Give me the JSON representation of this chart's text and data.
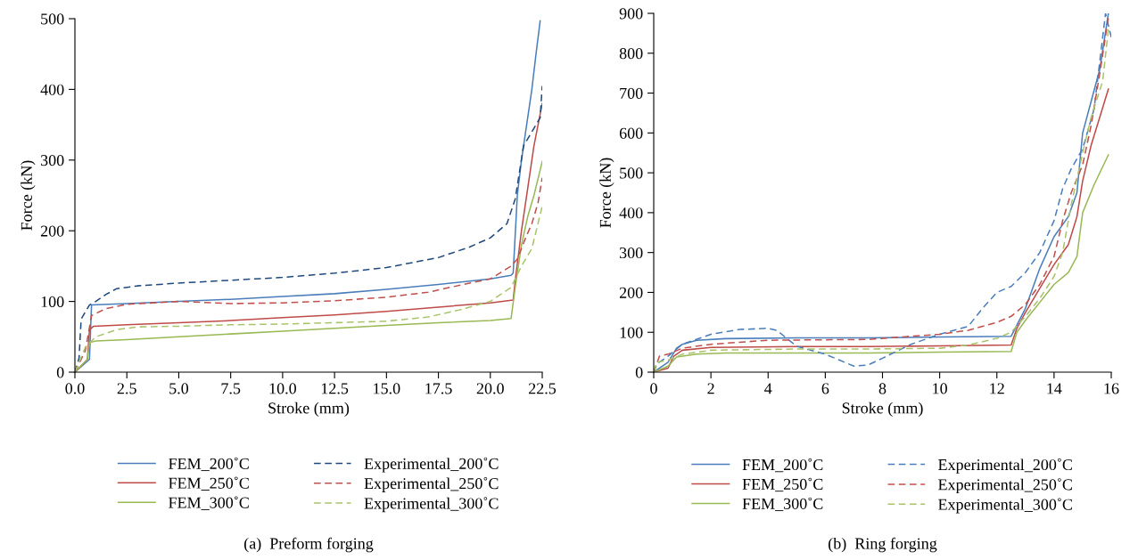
{
  "chart_data": [
    {
      "type": "line",
      "xlabel": "Stroke (mm)",
      "ylabel": "Force (kN)",
      "xlim": [
        0,
        22.5
      ],
      "ylim": [
        0,
        500
      ],
      "xticks": [
        {
          "value": 0,
          "label": "0.0"
        },
        {
          "value": 2.5,
          "label": "2.5"
        },
        {
          "value": 5,
          "label": "5.0"
        },
        {
          "value": 7.5,
          "label": "7.5"
        },
        {
          "value": 10,
          "label": "10.0"
        },
        {
          "value": 12.5,
          "label": "12.5"
        },
        {
          "value": 15,
          "label": "15.0"
        },
        {
          "value": 17.5,
          "label": "17.5"
        },
        {
          "value": 20,
          "label": "20.0"
        },
        {
          "value": 22.5,
          "label": "22.5"
        }
      ],
      "yticks": [
        0,
        100,
        200,
        300,
        400,
        500
      ],
      "grid": false,
      "legend": "bottom",
      "marker": "none",
      "annotations": [
        "(a)  Preform forging"
      ],
      "series": [
        {
          "name": "FEM_200˚C",
          "color": "#4a7ebb",
          "line_style": "solid",
          "x": [
            0,
            0.7,
            0.8,
            2.5,
            5,
            7.5,
            10,
            12.5,
            15,
            17.5,
            20,
            21,
            21.1,
            21.3,
            21.5,
            21.8,
            22,
            22.2,
            22.4
          ],
          "values": [
            0,
            18,
            95,
            97,
            100,
            103,
            107,
            111,
            117,
            124,
            132,
            137,
            140,
            250,
            300,
            360,
            400,
            450,
            497
          ]
        },
        {
          "name": "FEM_250˚C",
          "color": "#be4b48",
          "line_style": "solid",
          "x": [
            0,
            0.6,
            0.7,
            0.9,
            2.5,
            5,
            7.5,
            10,
            12.5,
            15,
            17.5,
            20,
            21.1,
            21.2,
            21.5,
            21.8,
            22.1,
            22.4,
            22.5
          ],
          "values": [
            0,
            18,
            60,
            65,
            67,
            70,
            73,
            77,
            81,
            86,
            92,
            98,
            102,
            130,
            200,
            260,
            320,
            365,
            380
          ]
        },
        {
          "name": "FEM_300˚C",
          "color": "#98b954",
          "line_style": "solid",
          "x": [
            0,
            0.6,
            0.7,
            1,
            2.5,
            5,
            7.5,
            10,
            12.5,
            15,
            17.5,
            20,
            21,
            21.2,
            21.5,
            21.8,
            22.1,
            22.5
          ],
          "values": [
            0,
            18,
            42,
            44,
            46,
            50,
            54,
            58,
            62,
            66,
            70,
            73,
            76,
            120,
            180,
            220,
            250,
            298
          ]
        },
        {
          "name": "Experimental_200˚C",
          "color": "#1f497d",
          "line_style": "dashed",
          "x": [
            0,
            0.2,
            0.3,
            0.7,
            1,
            1.5,
            2,
            3,
            5,
            7.5,
            10,
            12.5,
            15,
            17.5,
            19,
            20,
            20.8,
            21.2,
            21.6,
            22,
            22.4,
            22.5
          ],
          "values": [
            0,
            20,
            75,
            95,
            100,
            110,
            118,
            122,
            126,
            130,
            134,
            140,
            148,
            162,
            177,
            190,
            210,
            245,
            320,
            340,
            360,
            405
          ]
        },
        {
          "name": "Experimental_250˚C",
          "color": "#c0504d",
          "line_style": "dashed",
          "x": [
            0,
            0.5,
            0.8,
            1.5,
            2.5,
            5,
            7.5,
            10,
            12.5,
            15,
            17,
            19,
            20,
            21,
            21.3,
            21.7,
            22,
            22.3,
            22.5
          ],
          "values": [
            0,
            30,
            80,
            90,
            96,
            100,
            97,
            98,
            101,
            106,
            113,
            126,
            132,
            150,
            160,
            190,
            210,
            240,
            275
          ]
        },
        {
          "name": "Experimental_300˚C",
          "color": "#a8c46a",
          "line_style": "dashed",
          "x": [
            0,
            0.5,
            1,
            2,
            3,
            5,
            7.5,
            10,
            12.5,
            15,
            17,
            18.5,
            20,
            21,
            21.5,
            22,
            22.5
          ],
          "values": [
            0,
            35,
            50,
            60,
            64,
            65,
            67,
            68,
            70,
            72,
            78,
            88,
            100,
            120,
            150,
            175,
            235
          ]
        }
      ]
    },
    {
      "type": "line",
      "xlabel": "Stroke (mm)",
      "ylabel": "Force (kN)",
      "xlim": [
        0,
        16
      ],
      "ylim": [
        0,
        900
      ],
      "xticks": [
        0,
        2,
        4,
        6,
        8,
        10,
        12,
        14,
        16
      ],
      "yticks": [
        0,
        100,
        200,
        300,
        400,
        500,
        600,
        700,
        800,
        900
      ],
      "grid": false,
      "legend": "bottom",
      "marker": "none",
      "annotations": [
        "(b)  Ring forging"
      ],
      "series": [
        {
          "name": "FEM_200˚C",
          "color": "#4a7ebb",
          "line_style": "solid",
          "x": [
            0,
            0.5,
            0.8,
            1,
            1.5,
            2.5,
            5,
            7.5,
            10,
            12.5,
            13,
            13.5,
            14,
            14.5,
            14.8,
            15,
            15.3,
            15.6,
            15.9
          ],
          "values": [
            0,
            25,
            60,
            70,
            80,
            84,
            86,
            86,
            88,
            90,
            160,
            260,
            340,
            390,
            450,
            600,
            680,
            760,
            900
          ]
        },
        {
          "name": "FEM_250˚C",
          "color": "#be4b48",
          "line_style": "solid",
          "x": [
            0,
            0.5,
            0.7,
            1,
            2,
            5,
            7.5,
            10,
            12.5,
            12.7,
            13,
            13.5,
            14,
            14.5,
            14.8,
            15,
            15.3,
            15.6,
            15.9
          ],
          "values": [
            0,
            10,
            40,
            55,
            62,
            64,
            64,
            66,
            68,
            110,
            150,
            210,
            270,
            320,
            390,
            480,
            570,
            640,
            710
          ]
        },
        {
          "name": "FEM_300˚C",
          "color": "#98b954",
          "line_style": "solid",
          "x": [
            0,
            0.5,
            0.8,
            1.5,
            2.5,
            5,
            7.5,
            10,
            12.5,
            12.7,
            13,
            13.5,
            14,
            14.5,
            14.8,
            15,
            15.4,
            15.9
          ],
          "values": [
            0,
            15,
            38,
            45,
            48,
            48,
            48,
            50,
            52,
            100,
            130,
            175,
            220,
            250,
            290,
            400,
            470,
            545
          ]
        },
        {
          "name": "Experimental_200˚C",
          "color": "#4a7ebb",
          "line_style": "dashed",
          "x": [
            0,
            0.1,
            0.5,
            1,
            2,
            3,
            4,
            4.3,
            5,
            6,
            6.5,
            7,
            7.5,
            8,
            9,
            10,
            11,
            11.5,
            12,
            12.5,
            13,
            13.5,
            14,
            14.3,
            14.6,
            15,
            15.4,
            15.8,
            16
          ],
          "values": [
            0,
            20,
            40,
            70,
            95,
            107,
            110,
            105,
            65,
            45,
            30,
            15,
            18,
            35,
            70,
            95,
            115,
            160,
            200,
            215,
            250,
            300,
            380,
            460,
            510,
            560,
            660,
            900,
            840
          ]
        },
        {
          "name": "Experimental_250˚C",
          "color": "#c0504d",
          "line_style": "dashed",
          "x": [
            0,
            0.2,
            0.5,
            1,
            2,
            4,
            7.5,
            9,
            10,
            11,
            12,
            12.5,
            13,
            13.5,
            14,
            14.3,
            14.6,
            15,
            15.3,
            15.6,
            15.9
          ],
          "values": [
            0,
            40,
            45,
            60,
            70,
            80,
            82,
            90,
            95,
            105,
            125,
            140,
            170,
            220,
            290,
            380,
            450,
            520,
            620,
            750,
            890
          ]
        },
        {
          "name": "Experimental_300˚C",
          "color": "#a8c46a",
          "line_style": "dashed",
          "x": [
            0,
            0.1,
            0.5,
            1,
            2,
            5,
            7.5,
            10,
            11,
            12,
            12.5,
            13,
            13.5,
            14,
            14.3,
            14.6,
            15,
            15.3,
            15.7,
            15.9
          ],
          "values": [
            0,
            25,
            30,
            45,
            55,
            58,
            58,
            60,
            68,
            85,
            100,
            140,
            185,
            240,
            300,
            420,
            550,
            640,
            730,
            860
          ]
        }
      ]
    }
  ]
}
